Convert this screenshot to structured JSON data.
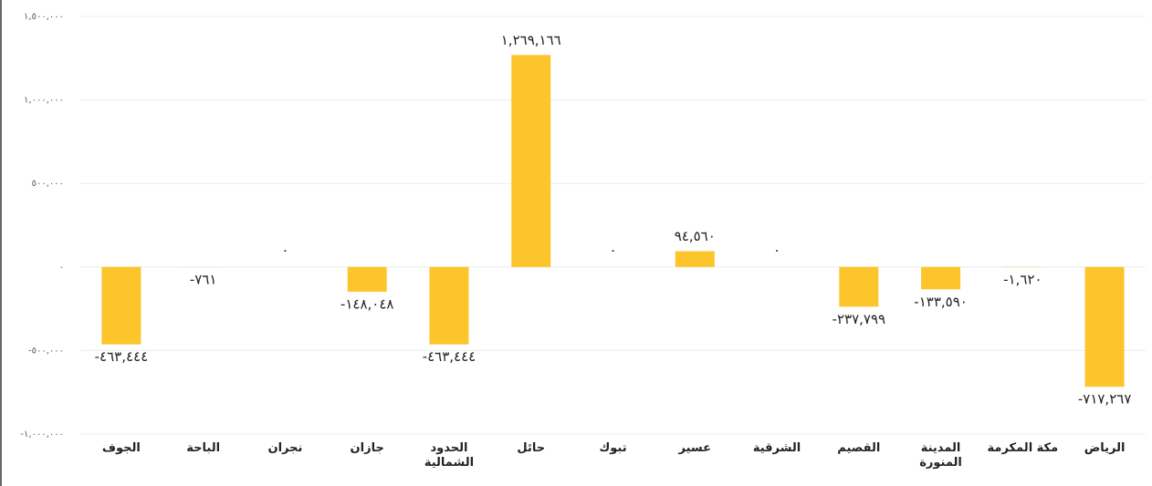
{
  "chart_data": {
    "type": "bar",
    "categories": [
      "الجوف",
      "الباحة",
      "نجران",
      "جازان",
      "الحدود الشمالية",
      "حائل",
      "تبوك",
      "عسير",
      "الشرقية",
      "القصيم",
      "المدينة المنورة",
      "مكة المكرمة",
      "الرياض"
    ],
    "values": [
      -463444,
      -761,
      0,
      -148048,
      -463444,
      1269166,
      0,
      94560,
      0,
      -237799,
      -133590,
      -1620,
      -717267
    ],
    "value_labels": [
      "-٤٦٣,٤٤٤",
      "-٧٦١",
      "٠",
      "-١٤٨,٠٤٨",
      "-٤٦٣,٤٤٤",
      "١,٢٦٩,١٦٦",
      "٠",
      "٩٤,٥٦٠",
      "٠",
      "-٢٣٧,٧٩٩",
      "-١٣٣,٥٩٠",
      "-١,٦٢٠",
      "-٧١٧,٢٦٧"
    ],
    "color": "#fdc52c",
    "ylim": [
      -1000000,
      1500000
    ],
    "yticks": [
      {
        "value": -1000000,
        "label": "-١,٠٠٠,٠٠٠"
      },
      {
        "value": -500000,
        "label": "-٥٠٠,٠٠٠"
      },
      {
        "value": 0,
        "label": "٠"
      },
      {
        "value": 500000,
        "label": "٥٠٠,٠٠٠"
      },
      {
        "value": 1000000,
        "label": "١,٠٠٠,٠٠٠"
      },
      {
        "value": 1500000,
        "label": "١,٥٠٠,٠٠٠"
      }
    ],
    "grid": true
  }
}
